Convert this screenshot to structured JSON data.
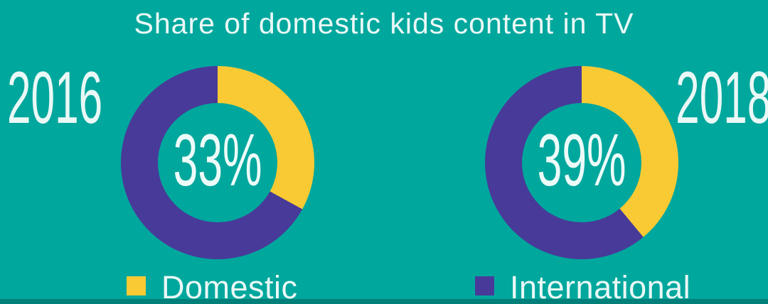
{
  "title": "Share of domestic kids content in TV",
  "colors": {
    "background": "#00A79D",
    "text": "#EAF8F6",
    "domestic": "#F9CA33",
    "international": "#483A99"
  },
  "chart_data": {
    "type": "pie",
    "subtype": "donut",
    "title": "Share of domestic kids content in TV",
    "legend_position": "bottom",
    "colors": {
      "domestic": "#F9CA33",
      "international": "#483A99"
    },
    "legend": [
      {
        "label": "Domestic",
        "series_key": "domestic"
      },
      {
        "label": "International",
        "series_key": "international"
      }
    ],
    "donuts": [
      {
        "year": "2016",
        "center_label": "33%",
        "slices": {
          "domestic": 33,
          "international": 67
        },
        "domestic_pct": 33,
        "international_pct": 67
      },
      {
        "year": "2018",
        "center_label": "39%",
        "slices": {
          "domestic": 39,
          "international": 61
        },
        "domestic_pct": 39,
        "international_pct": 61
      }
    ]
  }
}
